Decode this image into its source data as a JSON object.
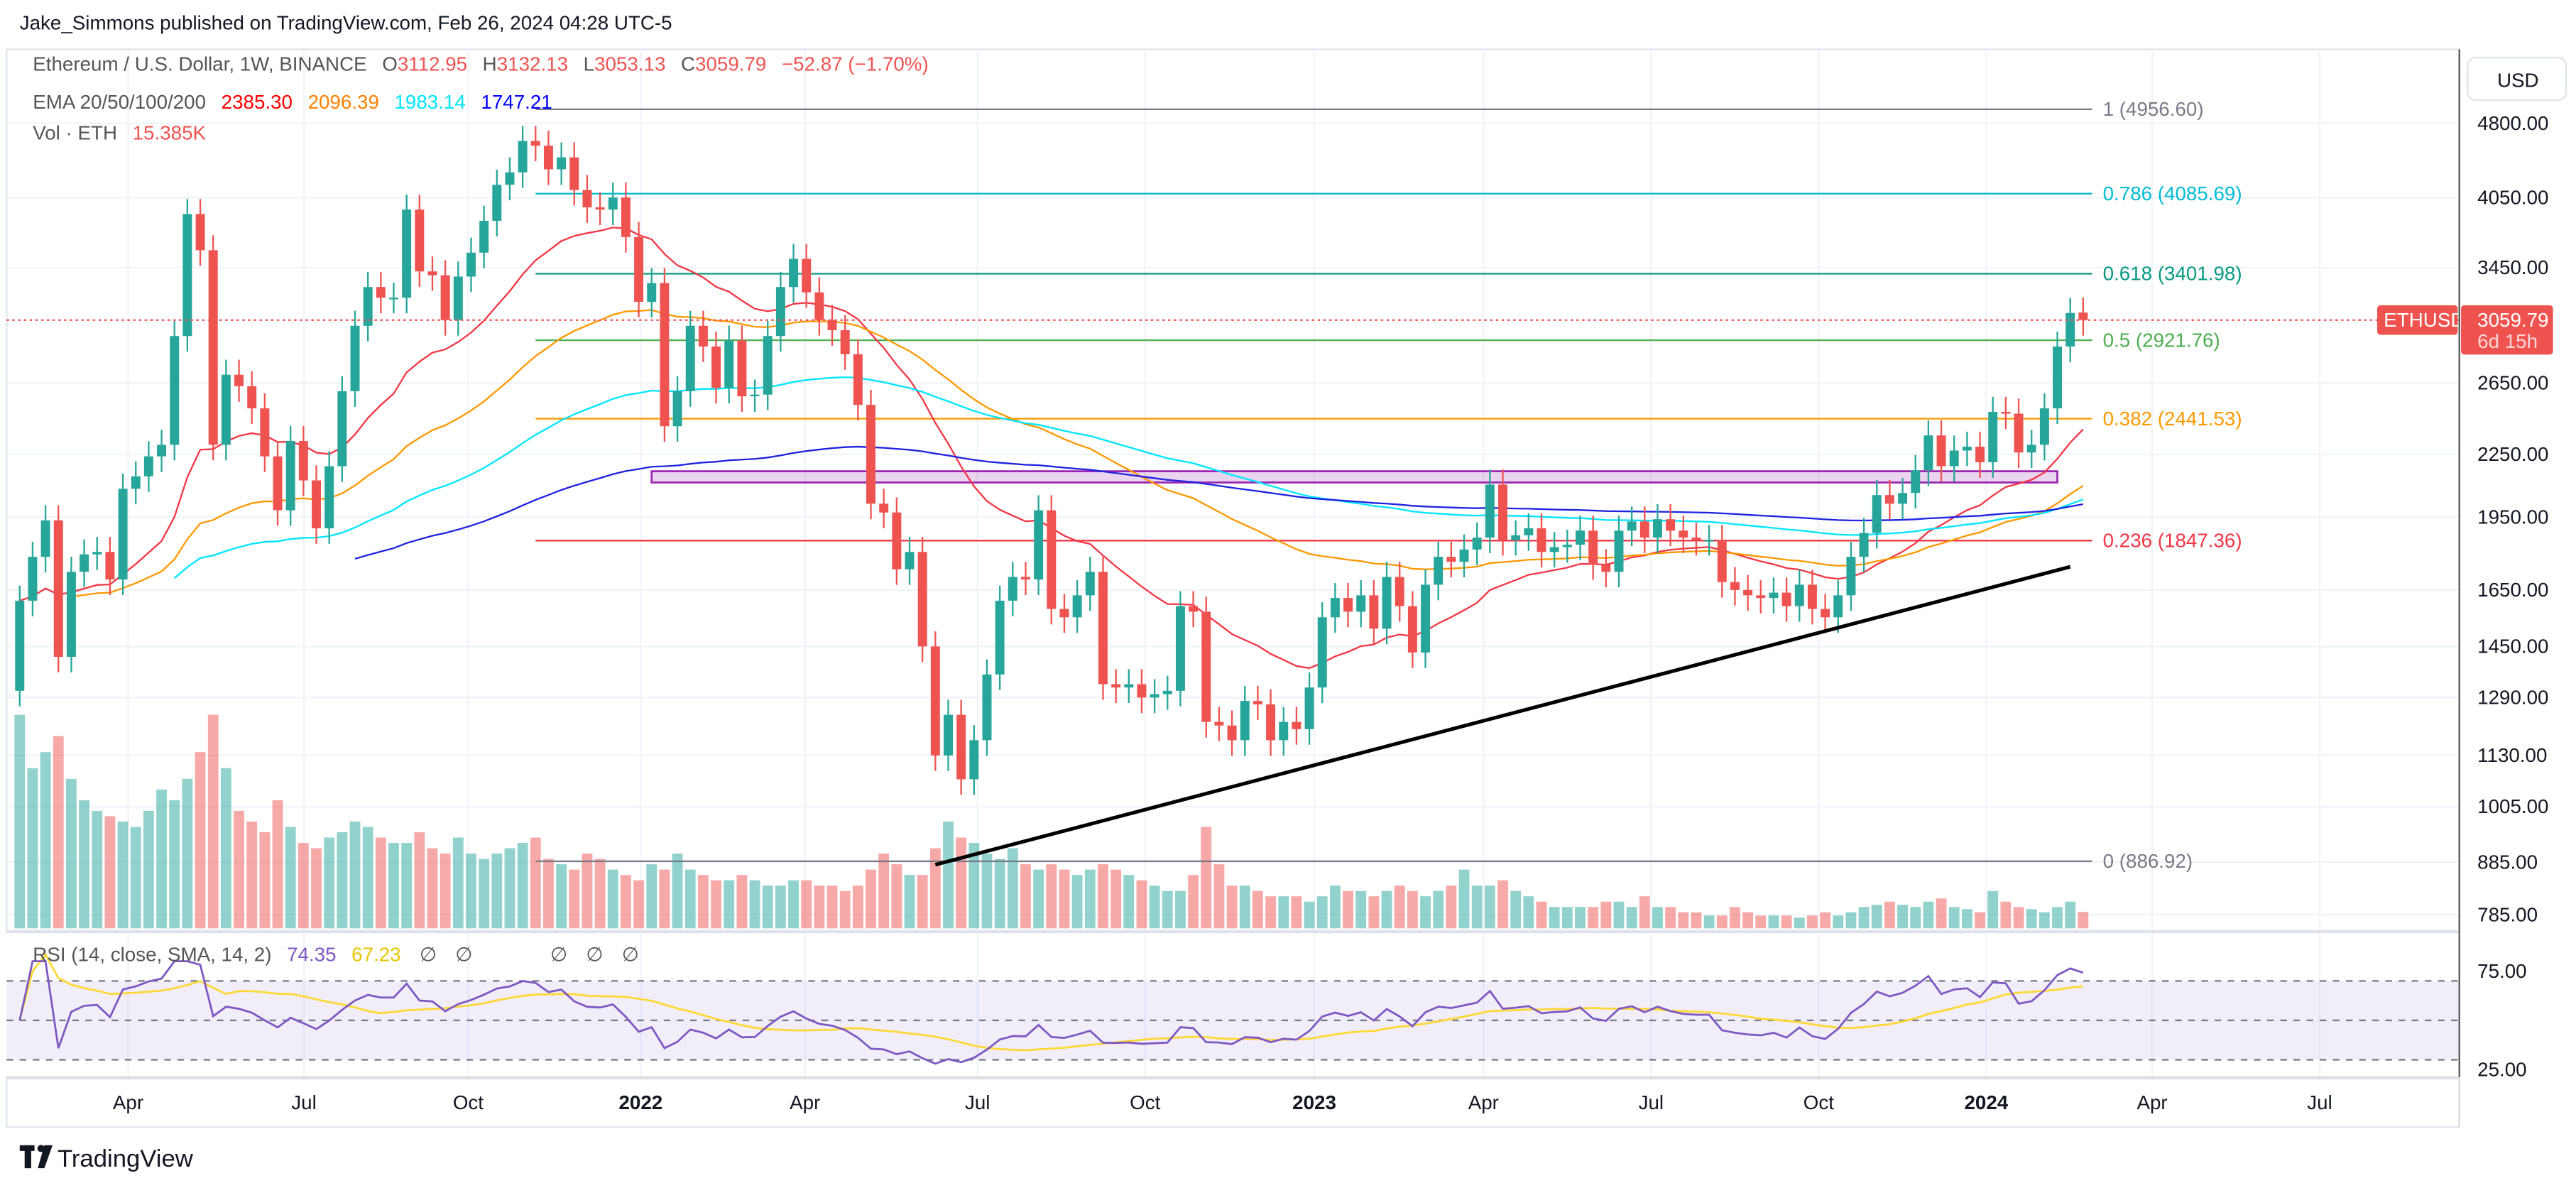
{
  "header": {
    "publisher": "Jake_Simmons published on TradingView.com, Feb 26, 2024 04:28 UTC-5"
  },
  "legend": {
    "symbol": "Ethereum / U.S. Dollar, 1W, BINANCE",
    "o_label": "O",
    "o": "3112.95",
    "h_label": "H",
    "h": "3132.13",
    "l_label": "L",
    "l": "3053.13",
    "c_label": "C",
    "c": "3059.79",
    "change": "−52.87 (−1.70%)",
    "ema_label": "EMA 20/50/100/200",
    "ema20": "2385.30",
    "ema50": "2096.39",
    "ema100": "1983.14",
    "ema200": "1747.21",
    "vol_label": "Vol · ETH",
    "vol": "15.385K",
    "rsi_label": "RSI (14, close, SMA, 14, 2)",
    "rsi": "74.35",
    "rsi_sma": "67.23",
    "rsi_na": [
      "∅",
      "∅",
      "∅",
      "∅",
      "∅"
    ]
  },
  "price_axis": {
    "currency": "USD",
    "ticks": [
      "4800.00",
      "4050.00",
      "3450.00",
      "2650.00",
      "2250.00",
      "1950.00",
      "1650.00",
      "1450.00",
      "1290.00",
      "1130.00",
      "1005.00",
      "885.00",
      "785.00"
    ],
    "last_symbol": "ETHUSD",
    "last_price": "3059.79",
    "countdown": "6d 15h"
  },
  "rsi_axis": {
    "ticks": [
      "75.00",
      "25.00"
    ]
  },
  "time_axis": {
    "ticks": [
      "Apr",
      "Jul",
      "Oct",
      "2022",
      "Apr",
      "Jul",
      "Oct",
      "2023",
      "Apr",
      "Jul",
      "Oct",
      "2024",
      "Apr",
      "Jul"
    ]
  },
  "footer": {
    "logo_text": "TradingView"
  },
  "colors": {
    "up": "#26a69a",
    "down": "#ef5350",
    "ema20": "#f23645",
    "ema50": "#ff9800",
    "ema100": "#00e5ff",
    "ema200": "#1e22e0",
    "rsi": "#7e57c2",
    "rsi_sma": "#fdd835"
  },
  "chart_data": {
    "type": "candlestick",
    "title": "Ethereum / U.S. Dollar, 1W, BINANCE",
    "scale": "log",
    "ylim": [
      760,
      5000
    ],
    "first_week": "2021-02-01",
    "first_open": 1310,
    "last_open": 3112.95,
    "closes": [
      1610,
      1780,
      1935,
      1416,
      1720,
      1790,
      1800,
      1690,
      2080,
      2140,
      2240,
      2300,
      2950,
      3900,
      3590,
      2300,
      2700,
      2630,
      2500,
      2240,
      1980,
      2320,
      2120,
      1900,
      2190,
      2600,
      3020,
      3300,
      3220,
      3220,
      3940,
      3420,
      3390,
      3060,
      3380,
      3570,
      3840,
      4170,
      4290,
      4610,
      4560,
      4320,
      4440,
      4120,
      3960,
      3940,
      4050,
      3700,
      3190,
      3330,
      2400,
      2600,
      3020,
      2880,
      2620,
      2920,
      2570,
      2580,
      2950,
      3300,
      3520,
      3260,
      3060,
      2990,
      2830,
      2520,
      2010,
      1970,
      1730,
      1800,
      1450,
      1130,
      1240,
      1070,
      1170,
      1360,
      1610,
      1700,
      1690,
      1980,
      1580,
      1550,
      1630,
      1720,
      1330,
      1320,
      1330,
      1290,
      1300,
      1310,
      1590,
      1570,
      1220,
      1210,
      1170,
      1280,
      1270,
      1170,
      1220,
      1200,
      1320,
      1550,
      1620,
      1570,
      1630,
      1510,
      1700,
      1590,
      1430,
      1670,
      1780,
      1760,
      1810,
      1860,
      2100,
      1850,
      1870,
      1900,
      1800,
      1820,
      1830,
      1890,
      1750,
      1720,
      1890,
      1930,
      1860,
      1940,
      1890,
      1860,
      1850,
      1850,
      1680,
      1650,
      1630,
      1620,
      1640,
      1590,
      1670,
      1580,
      1550,
      1630,
      1780,
      1880,
      2050,
      2010,
      2060,
      2170,
      2350,
      2190,
      2270,
      2290,
      2210,
      2480,
      2470,
      2260,
      2300,
      2500,
      2880,
      3110,
      3059.79
    ],
    "volume_k": [
      200,
      150,
      165,
      180,
      140,
      120,
      110,
      105,
      100,
      95,
      110,
      130,
      120,
      140,
      165,
      200,
      150,
      110,
      100,
      90,
      120,
      95,
      80,
      75,
      85,
      90,
      100,
      95,
      85,
      80,
      80,
      90,
      75,
      70,
      85,
      70,
      65,
      70,
      75,
      80,
      85,
      65,
      60,
      55,
      70,
      65,
      55,
      50,
      45,
      60,
      55,
      70,
      55,
      50,
      45,
      45,
      50,
      45,
      40,
      40,
      45,
      45,
      40,
      40,
      35,
      40,
      55,
      70,
      60,
      50,
      50,
      75,
      100,
      85,
      80,
      70,
      65,
      75,
      60,
      55,
      60,
      55,
      50,
      55,
      60,
      55,
      50,
      45,
      40,
      35,
      35,
      50,
      95,
      60,
      40,
      40,
      35,
      30,
      30,
      30,
      25,
      30,
      40,
      35,
      35,
      30,
      35,
      40,
      35,
      30,
      35,
      40,
      55,
      40,
      40,
      45,
      35,
      30,
      25,
      20,
      20,
      20,
      20,
      25,
      25,
      20,
      30,
      20,
      20,
      15,
      15,
      12,
      12,
      20,
      15,
      12,
      12,
      12,
      10,
      12,
      15,
      12,
      15,
      20,
      22,
      25,
      22,
      20,
      25,
      28,
      20,
      18,
      15,
      35,
      25,
      20,
      18,
      15,
      20,
      25,
      15.385
    ],
    "fib_start": "2021-11-08",
    "fib_levels": [
      {
        "label": "1 (4956.60)",
        "value": 4956.6,
        "color": "#787b86"
      },
      {
        "label": "0.786 (4085.69)",
        "value": 4085.69,
        "color": "#00bcd4"
      },
      {
        "label": "0.618 (3401.98)",
        "value": 3401.98,
        "color": "#089981"
      },
      {
        "label": "0.5 (2921.76)",
        "value": 2921.76,
        "color": "#4caf50"
      },
      {
        "label": "0.382 (2441.53)",
        "value": 2441.53,
        "color": "#ff9800"
      },
      {
        "label": "0.236 (1847.36)",
        "value": 1847.36,
        "color": "#f23645"
      },
      {
        "label": "0 (886.92)",
        "value": 886.92,
        "color": "#787b86"
      }
    ],
    "trendline": {
      "from": {
        "date": "2022-06-13",
        "price": 880
      },
      "to": {
        "date": "2024-02-19",
        "price": 1740
      }
    },
    "resistance_zone": {
      "from": "2022-01-10",
      "to": "2024-02-12",
      "low": 2110,
      "high": 2165,
      "color": "#9c27b0"
    },
    "rsi_levels": [
      70,
      50,
      30
    ]
  }
}
